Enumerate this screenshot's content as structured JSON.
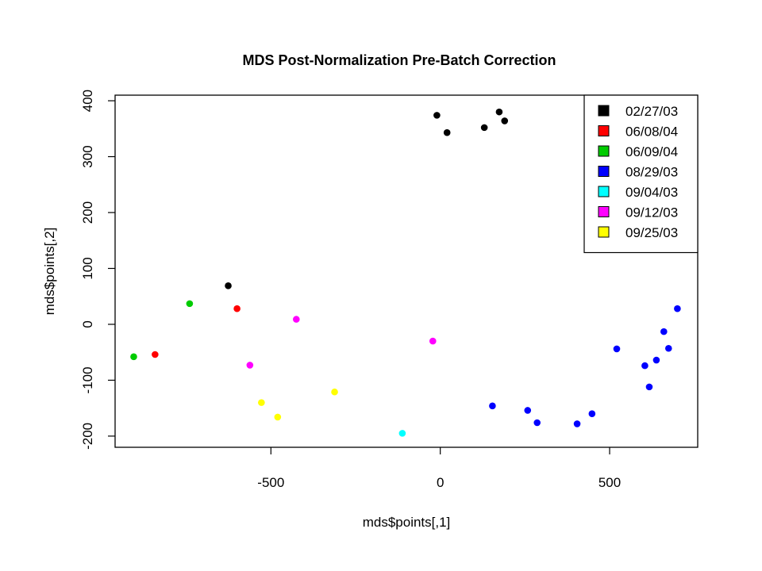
{
  "chart_data": {
    "type": "scatter",
    "title": "MDS Post-Normalization Pre-Batch Correction",
    "xlabel": "mds$points[,1]",
    "ylabel": "mds$points[,2]",
    "xlim": [
      -960,
      760
    ],
    "ylim": [
      -220,
      410
    ],
    "x_ticks": [
      -500,
      0,
      500
    ],
    "x_tick_labels": [
      "-500",
      "0",
      "500"
    ],
    "y_ticks": [
      -200,
      -100,
      0,
      100,
      200,
      300,
      400
    ],
    "y_tick_labels": [
      "-200",
      "-100",
      "0",
      "100",
      "200",
      "300",
      "400"
    ],
    "grid": false,
    "legend_position": "top-right",
    "series": [
      {
        "name": "02/27/03",
        "color": "#000000",
        "points": [
          {
            "x": -10,
            "y": 374
          },
          {
            "x": 20,
            "y": 343
          },
          {
            "x": 130,
            "y": 352
          },
          {
            "x": 174,
            "y": 380
          },
          {
            "x": 190,
            "y": 364
          },
          {
            "x": -626,
            "y": 69
          }
        ]
      },
      {
        "name": "06/08/04",
        "color": "#ff0000",
        "points": [
          {
            "x": -600,
            "y": 28
          },
          {
            "x": -842,
            "y": -54
          }
        ]
      },
      {
        "name": "06/09/04",
        "color": "#00cc00",
        "points": [
          {
            "x": -740,
            "y": 37
          },
          {
            "x": -905,
            "y": -58
          }
        ]
      },
      {
        "name": "08/29/03",
        "color": "#0000ff",
        "points": [
          {
            "x": 154,
            "y": -146
          },
          {
            "x": 258,
            "y": -154
          },
          {
            "x": 286,
            "y": -176
          },
          {
            "x": 404,
            "y": -178
          },
          {
            "x": 448,
            "y": -160
          },
          {
            "x": 521,
            "y": -44
          },
          {
            "x": 604,
            "y": -74
          },
          {
            "x": 617,
            "y": -112
          },
          {
            "x": 638,
            "y": -64
          },
          {
            "x": 660,
            "y": -13
          },
          {
            "x": 674,
            "y": -43
          },
          {
            "x": 700,
            "y": 28
          }
        ]
      },
      {
        "name": "09/04/03",
        "color": "#00ffff",
        "points": [
          {
            "x": -112,
            "y": -195
          }
        ]
      },
      {
        "name": "09/12/03",
        "color": "#ff00ff",
        "points": [
          {
            "x": -425,
            "y": 9
          },
          {
            "x": -562,
            "y": -73
          },
          {
            "x": -22,
            "y": -30
          }
        ]
      },
      {
        "name": "09/25/03",
        "color": "#ffff00",
        "points": [
          {
            "x": -528,
            "y": -140
          },
          {
            "x": -480,
            "y": -166
          },
          {
            "x": -312,
            "y": -121
          }
        ]
      }
    ]
  }
}
